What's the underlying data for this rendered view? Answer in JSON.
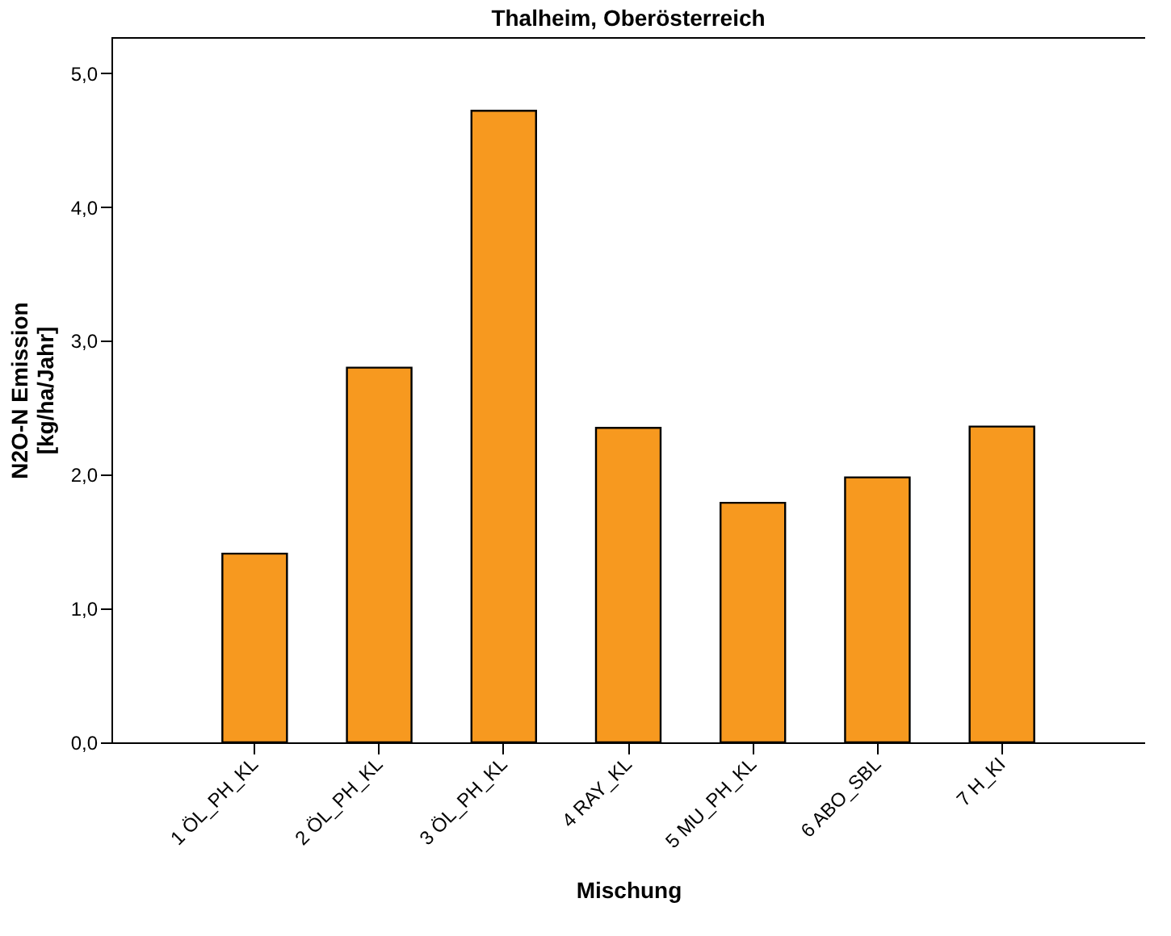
{
  "chart_data": {
    "type": "bar",
    "title": "Thalheim, Oberösterreich",
    "xlabel": "Mischung",
    "ylabel": "N2O-N Emission\n[kg/ha/Jahr]",
    "categories": [
      "1 ÖL_PH_KL",
      "2 ÖL_PH_KL",
      "3 ÖL_PH_KL",
      "4 RAY_KL",
      "5 MU_PH_KL",
      "6 ABO_SBL",
      "7 H_KI"
    ],
    "values": [
      1.41,
      2.8,
      4.72,
      2.35,
      1.79,
      1.98,
      2.36
    ],
    "color": "#f7991f",
    "ylim": [
      0,
      5.27
    ],
    "yticks": [
      {
        "value": 0,
        "label": "0,0"
      },
      {
        "value": 1,
        "label": "1,0"
      },
      {
        "value": 2,
        "label": "2,0"
      },
      {
        "value": 3,
        "label": "3,0"
      },
      {
        "value": 4,
        "label": "4,0"
      },
      {
        "value": 5,
        "label": "5,0"
      }
    ],
    "grid": false
  }
}
